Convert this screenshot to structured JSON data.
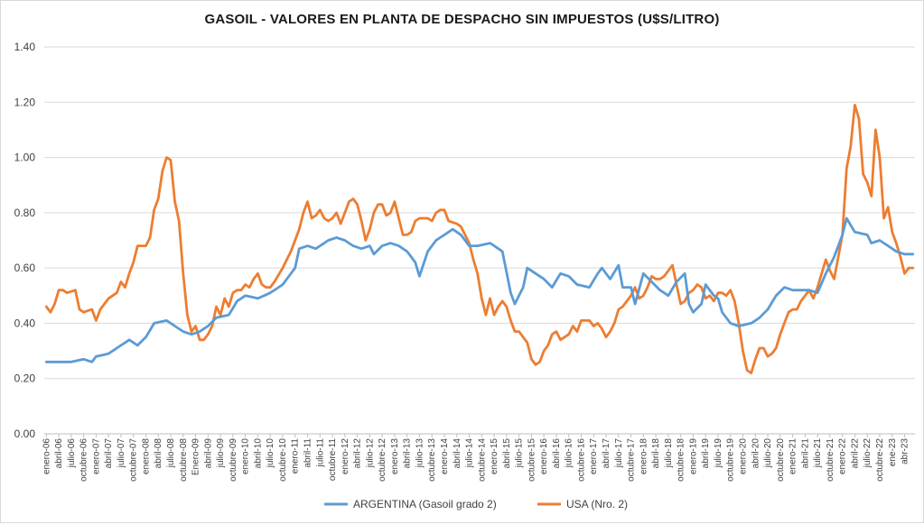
{
  "chart_data": {
    "type": "line",
    "title": "GASOIL  - VALORES EN PLANTA DE DESPACHO SIN IMPUESTOS (U$S/LITRO)",
    "xlabel": "",
    "ylabel": "",
    "ylim": [
      0,
      1.4
    ],
    "yticks": [
      0.0,
      0.2,
      0.4,
      0.6,
      0.8,
      1.0,
      1.2,
      1.4
    ],
    "ytick_labels": [
      "0.00",
      "0.20",
      "0.40",
      "0.60",
      "0.80",
      "1.00",
      "1.20",
      "1.40"
    ],
    "x_start": "2006-01",
    "x_count": 210,
    "x_tick_labels": [
      "enero-06",
      "abril-06",
      "julio-06",
      "octubre-06",
      "enero-07",
      "abril-07",
      "julio-07",
      "octubre-07",
      "enero-08",
      "abril-08",
      "julio-08",
      "octubre-08",
      "Enero-09",
      "abril-09",
      "julio-09",
      "octubre-09",
      "enero-10",
      "abril-10",
      "julio-10",
      "octubre-10",
      "enero-11",
      "abril-11",
      "julio-11",
      "octubre-11",
      "enero-12",
      "abril-12",
      "julio-12",
      "octubre-12",
      "enero-13",
      "abril-13",
      "julio-13",
      "octubre-13",
      "enero-14",
      "abril-14",
      "julio-14",
      "octubre-14",
      "enero-15",
      "abril-15",
      "julio-15",
      "octubre-15",
      "enero-16",
      "abril-16",
      "julio-16",
      "octubre-16",
      "enero-17",
      "abril-17",
      "julio-17",
      "octubre-17",
      "enero-18",
      "abril-18",
      "julio-18",
      "octubre-18",
      "enero-19",
      "abril-19",
      "julio-19",
      "octubre-19",
      "enero-20",
      "abril-20",
      "julio-20",
      "octubre-20",
      "enero-21",
      "abril-21",
      "julio-21",
      "octubre-21",
      "enero-22",
      "abril-22",
      "julio-22",
      "octubre-22",
      "ene-23",
      "abr-23"
    ],
    "grid": true,
    "legend_position": "bottom",
    "series": [
      {
        "name": "ARGENTINA (Gasoil grado 2)",
        "color": "#5B9BD5",
        "anchors": [
          [
            0,
            0.26
          ],
          [
            6,
            0.26
          ],
          [
            9,
            0.27
          ],
          [
            11,
            0.26
          ],
          [
            12,
            0.28
          ],
          [
            15,
            0.29
          ],
          [
            18,
            0.32
          ],
          [
            20,
            0.34
          ],
          [
            22,
            0.32
          ],
          [
            24,
            0.35
          ],
          [
            26,
            0.4
          ],
          [
            29,
            0.41
          ],
          [
            31,
            0.39
          ],
          [
            33,
            0.37
          ],
          [
            35,
            0.36
          ],
          [
            37,
            0.37
          ],
          [
            39,
            0.39
          ],
          [
            41,
            0.42
          ],
          [
            44,
            0.43
          ],
          [
            46,
            0.48
          ],
          [
            48,
            0.5
          ],
          [
            51,
            0.49
          ],
          [
            54,
            0.51
          ],
          [
            57,
            0.54
          ],
          [
            60,
            0.6
          ],
          [
            61,
            0.67
          ],
          [
            63,
            0.68
          ],
          [
            65,
            0.67
          ],
          [
            68,
            0.7
          ],
          [
            70,
            0.71
          ],
          [
            72,
            0.7
          ],
          [
            74,
            0.68
          ],
          [
            76,
            0.67
          ],
          [
            78,
            0.68
          ],
          [
            79,
            0.65
          ],
          [
            81,
            0.68
          ],
          [
            83,
            0.69
          ],
          [
            85,
            0.68
          ],
          [
            87,
            0.66
          ],
          [
            89,
            0.62
          ],
          [
            90,
            0.57
          ],
          [
            92,
            0.66
          ],
          [
            94,
            0.7
          ],
          [
            96,
            0.72
          ],
          [
            98,
            0.74
          ],
          [
            100,
            0.72
          ],
          [
            102,
            0.68
          ],
          [
            104,
            0.68
          ],
          [
            107,
            0.69
          ],
          [
            110,
            0.66
          ],
          [
            112,
            0.51
          ],
          [
            113,
            0.47
          ],
          [
            115,
            0.53
          ],
          [
            116,
            0.6
          ],
          [
            118,
            0.58
          ],
          [
            120,
            0.56
          ],
          [
            122,
            0.53
          ],
          [
            124,
            0.58
          ],
          [
            126,
            0.57
          ],
          [
            128,
            0.54
          ],
          [
            131,
            0.53
          ],
          [
            133,
            0.58
          ],
          [
            134,
            0.6
          ],
          [
            136,
            0.56
          ],
          [
            138,
            0.61
          ],
          [
            139,
            0.53
          ],
          [
            141,
            0.53
          ],
          [
            142,
            0.47
          ],
          [
            144,
            0.58
          ],
          [
            146,
            0.55
          ],
          [
            148,
            0.52
          ],
          [
            150,
            0.5
          ],
          [
            152,
            0.55
          ],
          [
            154,
            0.58
          ],
          [
            155,
            0.47
          ],
          [
            156,
            0.44
          ],
          [
            158,
            0.47
          ],
          [
            159,
            0.54
          ],
          [
            161,
            0.5
          ],
          [
            162,
            0.49
          ],
          [
            163,
            0.44
          ],
          [
            165,
            0.4
          ],
          [
            167,
            0.39
          ],
          [
            170,
            0.4
          ],
          [
            172,
            0.42
          ],
          [
            174,
            0.45
          ],
          [
            176,
            0.5
          ],
          [
            178,
            0.53
          ],
          [
            180,
            0.52
          ],
          [
            184,
            0.52
          ],
          [
            186,
            0.51
          ],
          [
            188,
            0.58
          ],
          [
            190,
            0.64
          ],
          [
            192,
            0.72
          ],
          [
            193,
            0.78
          ],
          [
            195,
            0.73
          ],
          [
            198,
            0.72
          ],
          [
            199,
            0.69
          ],
          [
            201,
            0.7
          ],
          [
            203,
            0.68
          ],
          [
            205,
            0.66
          ],
          [
            207,
            0.65
          ],
          [
            209,
            0.65
          ]
        ]
      },
      {
        "name": "USA (Nro. 2)",
        "color": "#ED7D31",
        "anchors": [
          [
            0,
            0.46
          ],
          [
            1,
            0.44
          ],
          [
            2,
            0.47
          ],
          [
            3,
            0.52
          ],
          [
            4,
            0.52
          ],
          [
            5,
            0.51
          ],
          [
            7,
            0.52
          ],
          [
            8,
            0.45
          ],
          [
            9,
            0.44
          ],
          [
            11,
            0.45
          ],
          [
            12,
            0.41
          ],
          [
            13,
            0.45
          ],
          [
            15,
            0.49
          ],
          [
            17,
            0.51
          ],
          [
            18,
            0.55
          ],
          [
            19,
            0.53
          ],
          [
            20,
            0.58
          ],
          [
            21,
            0.62
          ],
          [
            22,
            0.68
          ],
          [
            24,
            0.68
          ],
          [
            25,
            0.71
          ],
          [
            26,
            0.81
          ],
          [
            27,
            0.85
          ],
          [
            28,
            0.95
          ],
          [
            29,
            1.0
          ],
          [
            30,
            0.99
          ],
          [
            31,
            0.84
          ],
          [
            32,
            0.77
          ],
          [
            33,
            0.58
          ],
          [
            34,
            0.43
          ],
          [
            35,
            0.37
          ],
          [
            36,
            0.39
          ],
          [
            37,
            0.34
          ],
          [
            38,
            0.34
          ],
          [
            39,
            0.36
          ],
          [
            40,
            0.39
          ],
          [
            41,
            0.46
          ],
          [
            42,
            0.43
          ],
          [
            43,
            0.49
          ],
          [
            44,
            0.46
          ],
          [
            45,
            0.51
          ],
          [
            46,
            0.52
          ],
          [
            47,
            0.52
          ],
          [
            48,
            0.54
          ],
          [
            49,
            0.53
          ],
          [
            50,
            0.56
          ],
          [
            51,
            0.58
          ],
          [
            52,
            0.54
          ],
          [
            53,
            0.53
          ],
          [
            54,
            0.53
          ],
          [
            55,
            0.55
          ],
          [
            57,
            0.6
          ],
          [
            59,
            0.66
          ],
          [
            61,
            0.74
          ],
          [
            62,
            0.8
          ],
          [
            63,
            0.84
          ],
          [
            64,
            0.78
          ],
          [
            65,
            0.79
          ],
          [
            66,
            0.81
          ],
          [
            67,
            0.78
          ],
          [
            68,
            0.77
          ],
          [
            69,
            0.78
          ],
          [
            70,
            0.8
          ],
          [
            71,
            0.76
          ],
          [
            72,
            0.8
          ],
          [
            73,
            0.84
          ],
          [
            74,
            0.85
          ],
          [
            75,
            0.83
          ],
          [
            76,
            0.77
          ],
          [
            77,
            0.7
          ],
          [
            78,
            0.74
          ],
          [
            79,
            0.8
          ],
          [
            80,
            0.83
          ],
          [
            81,
            0.83
          ],
          [
            82,
            0.79
          ],
          [
            83,
            0.8
          ],
          [
            84,
            0.84
          ],
          [
            85,
            0.78
          ],
          [
            86,
            0.72
          ],
          [
            87,
            0.72
          ],
          [
            88,
            0.73
          ],
          [
            89,
            0.77
          ],
          [
            90,
            0.78
          ],
          [
            92,
            0.78
          ],
          [
            93,
            0.77
          ],
          [
            94,
            0.8
          ],
          [
            95,
            0.81
          ],
          [
            96,
            0.81
          ],
          [
            97,
            0.77
          ],
          [
            99,
            0.76
          ],
          [
            100,
            0.75
          ],
          [
            101,
            0.72
          ],
          [
            102,
            0.69
          ],
          [
            103,
            0.63
          ],
          [
            104,
            0.58
          ],
          [
            105,
            0.49
          ],
          [
            106,
            0.43
          ],
          [
            107,
            0.49
          ],
          [
            108,
            0.43
          ],
          [
            109,
            0.46
          ],
          [
            110,
            0.48
          ],
          [
            111,
            0.46
          ],
          [
            112,
            0.41
          ],
          [
            113,
            0.37
          ],
          [
            114,
            0.37
          ],
          [
            115,
            0.35
          ],
          [
            116,
            0.33
          ],
          [
            117,
            0.27
          ],
          [
            118,
            0.25
          ],
          [
            119,
            0.26
          ],
          [
            120,
            0.3
          ],
          [
            121,
            0.32
          ],
          [
            122,
            0.36
          ],
          [
            123,
            0.37
          ],
          [
            124,
            0.34
          ],
          [
            125,
            0.35
          ],
          [
            126,
            0.36
          ],
          [
            127,
            0.39
          ],
          [
            128,
            0.37
          ],
          [
            129,
            0.41
          ],
          [
            130,
            0.41
          ],
          [
            131,
            0.41
          ],
          [
            132,
            0.39
          ],
          [
            133,
            0.4
          ],
          [
            134,
            0.38
          ],
          [
            135,
            0.35
          ],
          [
            136,
            0.37
          ],
          [
            137,
            0.4
          ],
          [
            138,
            0.45
          ],
          [
            139,
            0.46
          ],
          [
            140,
            0.48
          ],
          [
            141,
            0.5
          ],
          [
            142,
            0.53
          ],
          [
            143,
            0.49
          ],
          [
            144,
            0.5
          ],
          [
            145,
            0.53
          ],
          [
            146,
            0.57
          ],
          [
            147,
            0.56
          ],
          [
            148,
            0.56
          ],
          [
            149,
            0.57
          ],
          [
            150,
            0.59
          ],
          [
            151,
            0.61
          ],
          [
            152,
            0.54
          ],
          [
            153,
            0.47
          ],
          [
            154,
            0.48
          ],
          [
            155,
            0.51
          ],
          [
            156,
            0.52
          ],
          [
            157,
            0.54
          ],
          [
            158,
            0.53
          ],
          [
            159,
            0.49
          ],
          [
            160,
            0.5
          ],
          [
            161,
            0.48
          ],
          [
            162,
            0.51
          ],
          [
            163,
            0.51
          ],
          [
            164,
            0.5
          ],
          [
            165,
            0.52
          ],
          [
            166,
            0.48
          ],
          [
            167,
            0.4
          ],
          [
            168,
            0.3
          ],
          [
            169,
            0.23
          ],
          [
            170,
            0.22
          ],
          [
            171,
            0.27
          ],
          [
            172,
            0.31
          ],
          [
            173,
            0.31
          ],
          [
            174,
            0.28
          ],
          [
            175,
            0.29
          ],
          [
            176,
            0.31
          ],
          [
            177,
            0.36
          ],
          [
            178,
            0.4
          ],
          [
            179,
            0.44
          ],
          [
            180,
            0.45
          ],
          [
            181,
            0.45
          ],
          [
            182,
            0.48
          ],
          [
            183,
            0.5
          ],
          [
            184,
            0.52
          ],
          [
            185,
            0.49
          ],
          [
            186,
            0.53
          ],
          [
            187,
            0.58
          ],
          [
            188,
            0.63
          ],
          [
            189,
            0.59
          ],
          [
            190,
            0.56
          ],
          [
            191,
            0.64
          ],
          [
            192,
            0.72
          ],
          [
            193,
            0.96
          ],
          [
            194,
            1.04
          ],
          [
            195,
            1.19
          ],
          [
            196,
            1.14
          ],
          [
            197,
            0.94
          ],
          [
            198,
            0.91
          ],
          [
            199,
            0.86
          ],
          [
            200,
            1.1
          ],
          [
            201,
            1.0
          ],
          [
            202,
            0.78
          ],
          [
            203,
            0.82
          ],
          [
            204,
            0.73
          ],
          [
            205,
            0.69
          ],
          [
            206,
            0.64
          ],
          [
            207,
            0.58
          ],
          [
            208,
            0.6
          ],
          [
            209,
            0.6
          ]
        ]
      }
    ]
  }
}
